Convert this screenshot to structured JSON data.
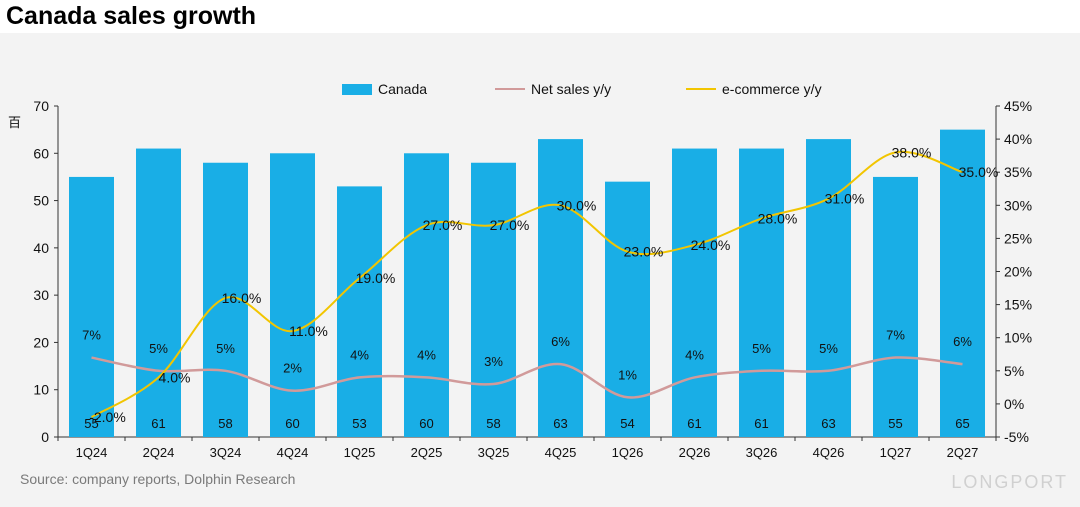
{
  "title": "Canada sales growth",
  "source": "Source: company reports, Dolphin Research",
  "watermark": "LONGPORT",
  "colors": {
    "bar": "#19AEE6",
    "net_sales": "#D19A9A",
    "ecommerce": "#F2C500",
    "axis": "#333333"
  },
  "legend": [
    "Canada",
    "Net sales y/y",
    "e-commerce y/y"
  ],
  "chart_data": {
    "type": "bar",
    "title": "Canada sales growth",
    "ylabel": "百",
    "categories": [
      "1Q24",
      "2Q24",
      "3Q24",
      "4Q24",
      "1Q25",
      "2Q25",
      "3Q25",
      "4Q25",
      "1Q26",
      "2Q26",
      "3Q26",
      "4Q26",
      "1Q27",
      "2Q27"
    ],
    "ylim": [
      0,
      70
    ],
    "y_ticks": [
      "0",
      "10",
      "20",
      "30",
      "40",
      "50",
      "60",
      "70"
    ],
    "y2lim": [
      -5,
      45
    ],
    "y2_ticks": [
      "-5%",
      "0%",
      "5%",
      "10%",
      "15%",
      "20%",
      "25%",
      "30%",
      "35%",
      "40%",
      "45%"
    ],
    "series": [
      {
        "name": "Canada",
        "type": "bar",
        "axis": "left",
        "values": [
          55,
          61,
          58,
          60,
          53,
          60,
          58,
          63,
          54,
          61,
          61,
          63,
          55,
          65
        ],
        "labels": [
          "55",
          "61",
          "58",
          "60",
          "53",
          "60",
          "58",
          "63",
          "54",
          "61",
          "61",
          "63",
          "55",
          "65"
        ]
      },
      {
        "name": "Net sales y/y",
        "type": "line",
        "axis": "right",
        "values": [
          7,
          5,
          5,
          2,
          4,
          4,
          3,
          6,
          1,
          4,
          5,
          5,
          7,
          6
        ],
        "labels": [
          "7%",
          "5%",
          "5%",
          "2%",
          "4%",
          "4%",
          "3%",
          "6%",
          "1%",
          "4%",
          "5%",
          "5%",
          "7%",
          "6%"
        ]
      },
      {
        "name": "e-commerce y/y",
        "type": "line",
        "axis": "right",
        "values": [
          -2,
          4,
          16,
          11,
          19,
          27,
          27,
          30,
          23,
          24,
          28,
          31,
          38,
          35
        ],
        "labels": [
          "-2.0%",
          "4.0%",
          "16.0%",
          "11.0%",
          "19.0%",
          "27.0%",
          "27.0%",
          "30.0%",
          "23.0%",
          "24.0%",
          "28.0%",
          "31.0%",
          "38.0%",
          "35.0%"
        ]
      }
    ],
    "legend_position": "top-center",
    "grid": false
  }
}
